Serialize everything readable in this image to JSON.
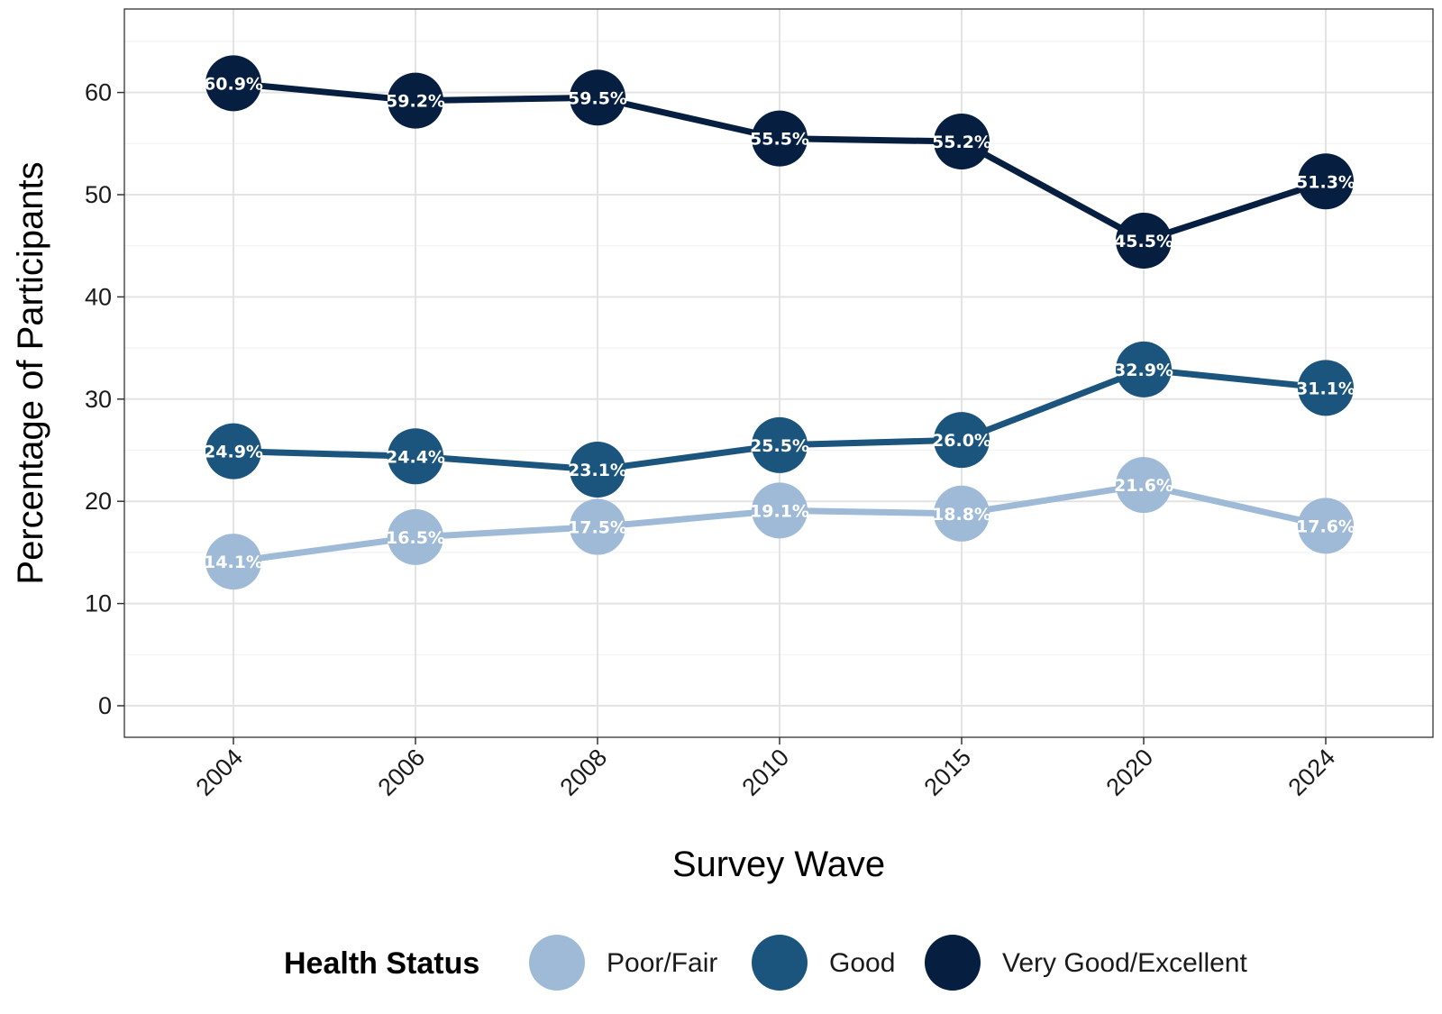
{
  "chart_data": {
    "type": "line",
    "title": "",
    "xlabel": "Survey Wave",
    "ylabel": "Percentage of Participants",
    "categories": [
      "2004",
      "2006",
      "2008",
      "2010",
      "2015",
      "2020",
      "2024"
    ],
    "ylim": [
      -3.2,
      68.3
    ],
    "yticks": [
      0,
      10,
      20,
      30,
      40,
      50,
      60
    ],
    "grid": true,
    "legend_title": "Health Status",
    "legend_position": "bottom",
    "series": [
      {
        "name": "Poor/Fair",
        "color": "#9fbad6",
        "values": [
          14.1,
          16.5,
          17.5,
          19.1,
          18.8,
          21.6,
          17.6
        ],
        "labels": [
          "14.1%",
          "16.5%",
          "17.5%",
          "19.1%",
          "18.8%",
          "21.6%",
          "17.6%"
        ]
      },
      {
        "name": "Good",
        "color": "#1b557d",
        "values": [
          24.9,
          24.4,
          23.1,
          25.5,
          26.0,
          32.9,
          31.1
        ],
        "labels": [
          "24.9%",
          "24.4%",
          "23.1%",
          "25.5%",
          "26.0%",
          "32.9%",
          "31.1%"
        ]
      },
      {
        "name": "Very Good/Excellent",
        "color": "#061e40",
        "values": [
          60.9,
          59.2,
          59.5,
          55.5,
          55.2,
          45.5,
          51.3
        ],
        "labels": [
          "60.9%",
          "59.2%",
          "59.5%",
          "55.5%",
          "55.2%",
          "45.5%",
          "51.3%"
        ]
      }
    ]
  }
}
